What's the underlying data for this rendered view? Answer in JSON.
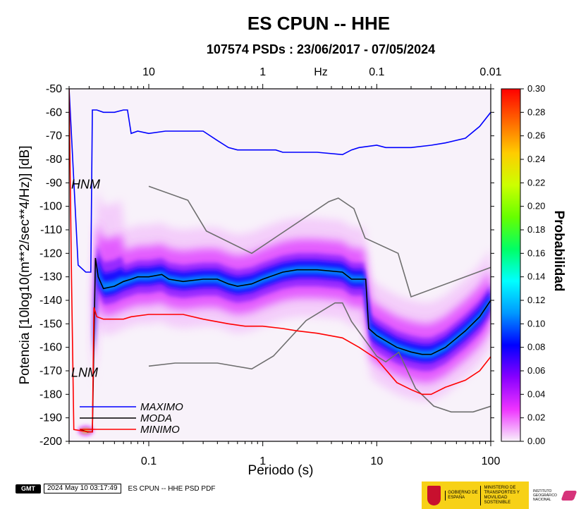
{
  "title": "ES CPUN -- HHE",
  "subtitle": "107574 PSDs : 23/06/2017 - 07/05/2024",
  "footer": {
    "logo_text": "GMT",
    "timestamp": "2024 May 10 03:17:49",
    "doc_title": "ES CPUN -- HHE PSD PDF",
    "gob_text": "GOBIERNO DE ESPAÑA",
    "ministry_text": "MINISTERIO DE TRANSPORTES Y MOVILIDAD SOSTENIBLE",
    "ign_text": "INSTITUTO GEOGRÁFICO NACIONAL"
  },
  "chart_data": {
    "type": "heatmap",
    "title": "ES CPUN -- HHE",
    "subtitle": "107574 PSDs : 23/06/2017 - 07/05/2024",
    "xlabel": "Periodo (s)",
    "x_scale": "log",
    "xlim": [
      0.02,
      100
    ],
    "x_ticks": [
      "0.1",
      "1",
      "10",
      "100"
    ],
    "top_axis_label": "Hz",
    "top_ticks": [
      "10",
      "1",
      "0.1",
      "0.01"
    ],
    "ylabel": "Potencia [10log10(m**2/sec**4/Hz)] [dB]",
    "ylim": [
      -200,
      -50
    ],
    "y_ticks": [
      -50,
      -60,
      -70,
      -80,
      -90,
      -100,
      -110,
      -120,
      -130,
      -140,
      -150,
      -160,
      -170,
      -180,
      -190,
      -200
    ],
    "colorbar": {
      "label": "Probabilidad",
      "range": [
        0,
        0.3
      ],
      "ticks": [
        "0.00",
        "0.02",
        "0.04",
        "0.06",
        "0.08",
        "0.10",
        "0.12",
        "0.14",
        "0.16",
        "0.18",
        "0.20",
        "0.22",
        "0.24",
        "0.26",
        "0.28",
        "0.30"
      ],
      "colors": [
        "#f8f2fa",
        "#ee33ff",
        "#8800ff",
        "#0000ff",
        "#0099ff",
        "#00ffff",
        "#00ff66",
        "#66ff00",
        "#ccff00",
        "#ffcc00",
        "#ff6600",
        "#ff0000"
      ]
    },
    "reference_models": [
      {
        "name": "HNM",
        "x": [
          0.1,
          0.22,
          0.32,
          0.8,
          3.8,
          4.6,
          6.3,
          7.9,
          15.4,
          20,
          100
        ],
        "y": [
          -91.5,
          -97.4,
          -110.5,
          -120,
          -98,
          -96.5,
          -101,
          -113.5,
          -120,
          -138.5,
          -126
        ]
      },
      {
        "name": "LNM",
        "x": [
          0.1,
          0.17,
          0.4,
          0.8,
          1.24,
          2.4,
          4.3,
          5,
          6,
          10,
          12,
          15.6,
          21.9,
          31.6,
          45,
          70,
          101
        ],
        "y": [
          -168,
          -166.7,
          -166.7,
          -169.2,
          -163.7,
          -148.6,
          -141.1,
          -141.1,
          -149,
          -163.8,
          -166.2,
          -162.1,
          -177.5,
          -185,
          -187.5,
          -187.5,
          -185
        ]
      }
    ],
    "series": [
      {
        "name": "MAXIMO",
        "color": "#0000ff",
        "x": [
          0.02,
          0.024,
          0.028,
          0.031,
          0.032,
          0.035,
          0.04,
          0.05,
          0.06,
          0.065,
          0.07,
          0.08,
          0.1,
          0.14,
          0.2,
          0.3,
          0.4,
          0.5,
          0.6,
          0.8,
          1,
          1.3,
          1.5,
          2,
          3,
          5,
          6,
          7,
          10,
          12,
          20,
          30,
          40,
          60,
          80,
          100
        ],
        "y": [
          -50,
          -125,
          -128,
          -128,
          -59,
          -59,
          -60,
          -60,
          -59,
          -59,
          -69,
          -68,
          -69,
          -68,
          -68,
          -68,
          -72,
          -75,
          -76,
          -76,
          -76,
          -76,
          -77,
          -77,
          -77,
          -78,
          -76,
          -75,
          -74,
          -75,
          -75,
          -74,
          -73,
          -71,
          -66,
          -60
        ]
      },
      {
        "name": "MODA",
        "color": "#000000",
        "x": [
          0.025,
          0.029,
          0.032,
          0.034,
          0.036,
          0.04,
          0.05,
          0.06,
          0.07,
          0.08,
          0.1,
          0.13,
          0.15,
          0.2,
          0.3,
          0.4,
          0.5,
          0.6,
          0.8,
          1,
          1.5,
          2,
          3,
          5,
          6,
          7,
          8,
          8.5,
          10,
          15,
          20,
          25,
          30,
          40,
          60,
          80,
          100
        ],
        "y": [
          -195,
          -196,
          -196,
          -122,
          -130,
          -135,
          -134,
          -132,
          -131,
          -130,
          -130,
          -129,
          -131,
          -132,
          -131,
          -131,
          -133,
          -134,
          -133,
          -131,
          -128,
          -127,
          -127,
          -128,
          -131,
          -131,
          -131,
          -152,
          -155,
          -160,
          -162,
          -163,
          -163,
          -160,
          -153,
          -147,
          -140
        ]
      },
      {
        "name": "MINIMO",
        "color": "#ff0000",
        "x": [
          0.02,
          0.021,
          0.022,
          0.03,
          0.032,
          0.033,
          0.035,
          0.04,
          0.05,
          0.06,
          0.07,
          0.1,
          0.2,
          0.3,
          0.5,
          0.7,
          1,
          1.5,
          2,
          3,
          5,
          7,
          10,
          15,
          20,
          25,
          30,
          40,
          60,
          80,
          100
        ],
        "y": [
          -50,
          -130,
          -195,
          -196,
          -196,
          -143,
          -147,
          -148,
          -148,
          -148,
          -147,
          -146,
          -146,
          -148,
          -150,
          -151,
          -151,
          -152,
          -153,
          -154,
          -156,
          -160,
          -165,
          -175,
          -178,
          -180,
          -180,
          -177,
          -174,
          -170,
          -164
        ]
      }
    ]
  }
}
